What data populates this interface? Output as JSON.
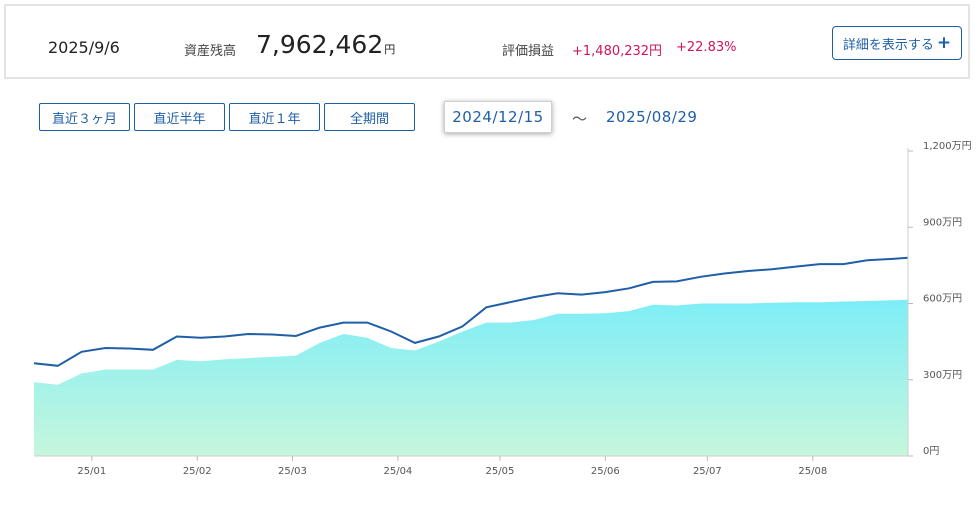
{
  "summary": {
    "date": "2025/9/6",
    "balance_label": "資産残高",
    "balance_value": "7,962,462",
    "balance_unit": "円",
    "pl_label": "評価損益",
    "pl_amount": "+1,480,232円",
    "pl_percent": "+22.83%",
    "detail_button": "詳細を表示する",
    "detail_button_icon": "plus-icon"
  },
  "range_buttons": [
    "直近３ヶ月",
    "直近半年",
    "直近１年",
    "全期間"
  ],
  "date_range": {
    "from": "2024/12/15",
    "separator": "～",
    "to": "2025/08/29"
  },
  "colors": {
    "accent": "#1f5fa8",
    "gain": "#d4145a",
    "line": "#1f5fa8",
    "area_top": "#7eedf7",
    "area_bottom": "#c6f7dc"
  },
  "chart_data": {
    "type": "area",
    "y_unit": "万円",
    "ylim": [
      0,
      1200
    ],
    "y_ticks": [
      "0円",
      "300万円",
      "600万円",
      "900万円",
      "1,200万円"
    ],
    "x_ticks": [
      "25/01",
      "25/02",
      "25/03",
      "25/04",
      "25/05",
      "25/06",
      "25/07",
      "25/08"
    ],
    "x": [
      "2024-12-15",
      "2024-12-22",
      "2024-12-29",
      "2025-01-05",
      "2025-01-12",
      "2025-01-19",
      "2025-01-26",
      "2025-02-02",
      "2025-02-09",
      "2025-02-16",
      "2025-02-23",
      "2025-03-02",
      "2025-03-09",
      "2025-03-16",
      "2025-03-23",
      "2025-03-30",
      "2025-04-06",
      "2025-04-13",
      "2025-04-20",
      "2025-04-27",
      "2025-05-04",
      "2025-05-11",
      "2025-05-18",
      "2025-05-25",
      "2025-06-01",
      "2025-06-08",
      "2025-06-15",
      "2025-06-22",
      "2025-06-29",
      "2025-07-06",
      "2025-07-13",
      "2025-07-20",
      "2025-07-27",
      "2025-08-03",
      "2025-08-10",
      "2025-08-17",
      "2025-08-24",
      "2025-08-29"
    ],
    "series": [
      {
        "values": [
          365,
          355,
          410,
          425,
          423,
          418,
          470,
          465,
          470,
          480,
          478,
          472,
          505,
          525,
          525,
          490,
          445,
          470,
          510,
          585,
          605,
          625,
          640,
          635,
          645,
          660,
          685,
          687,
          705,
          718,
          728,
          735,
          745,
          755,
          755,
          770,
          775,
          780
        ]
      },
      {
        "values": [
          290,
          280,
          325,
          340,
          340,
          340,
          378,
          373,
          380,
          385,
          390,
          395,
          445,
          480,
          465,
          425,
          415,
          450,
          490,
          525,
          525,
          535,
          560,
          560,
          562,
          570,
          595,
          592,
          600,
          600,
          600,
          603,
          605,
          605,
          608,
          610,
          613,
          615
        ]
      }
    ]
  }
}
